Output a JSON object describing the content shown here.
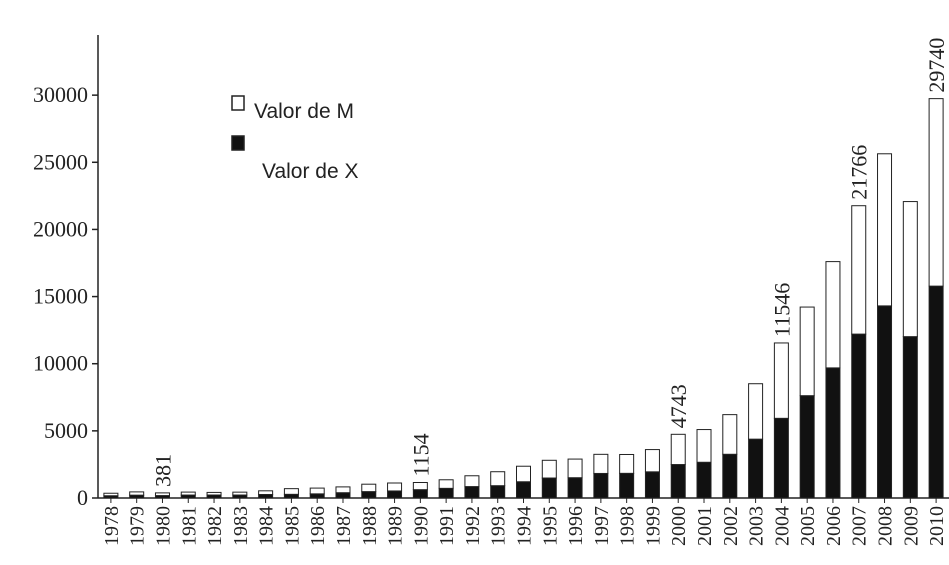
{
  "chart_data": {
    "type": "stacked_bar",
    "categories": [
      "1978",
      "1979",
      "1980",
      "1981",
      "1982",
      "1983",
      "1984",
      "1985",
      "1986",
      "1987",
      "1988",
      "1989",
      "1990",
      "1991",
      "1992",
      "1993",
      "1994",
      "1995",
      "1996",
      "1997",
      "1998",
      "1999",
      "2000",
      "2001",
      "2002",
      "2003",
      "2004",
      "2005",
      "2006",
      "2007",
      "2008",
      "2009",
      "2010"
    ],
    "series": [
      {
        "name": "Valor de X",
        "color": "#111111",
        "values": [
          168,
          212,
          181,
          220,
          223,
          222,
          261,
          274,
          309,
          394,
          475,
          525,
          621,
          719,
          850,
          917,
          1210,
          1488,
          1511,
          1828,
          1837,
          1949,
          2492,
          2661,
          3256,
          4382,
          5933,
          7620,
          9690,
          12205,
          14307,
          12016,
          15778
        ]
      },
      {
        "name": "Valor de M",
        "color": "#ffffff",
        "values": [
          187,
          243,
          200,
          220,
          193,
          214,
          274,
          422,
          429,
          433,
          553,
          592,
          533,
          638,
          806,
          1040,
          1156,
          1320,
          1388,
          1424,
          1403,
          1657,
          2251,
          2436,
          2952,
          4128,
          5613,
          6599,
          7914,
          9561,
          11326,
          10059,
          13962
        ]
      }
    ],
    "annotations": [
      {
        "x": "1980",
        "text": "381"
      },
      {
        "x": "1990",
        "text": "1154"
      },
      {
        "x": "2000",
        "text": "4743"
      },
      {
        "x": "2004",
        "text": "11546"
      },
      {
        "x": "2007",
        "text": "21766"
      },
      {
        "x": "2010",
        "text": "29740"
      }
    ],
    "ylim": [
      0,
      35000
    ],
    "yticks": [
      0,
      5000,
      10000,
      15000,
      20000,
      25000,
      30000
    ]
  }
}
